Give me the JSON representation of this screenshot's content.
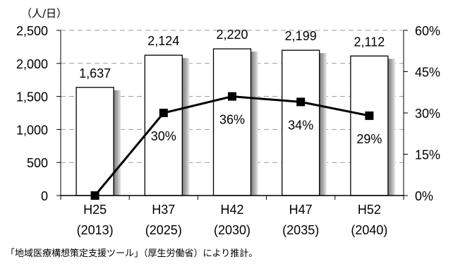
{
  "chart_data": {
    "type": "bar",
    "categories": [
      "H25",
      "H37",
      "H42",
      "H47",
      "H52"
    ],
    "category_years": [
      "(2013)",
      "(2025)",
      "(2030)",
      "(2035)",
      "(2040)"
    ],
    "series": [
      {
        "type": "bar",
        "axis": "left",
        "values": [
          1637,
          2124,
          2220,
          2199,
          2112
        ],
        "data_labels": [
          "1,637",
          "2,124",
          "2,220",
          "2,199",
          "2,112"
        ]
      },
      {
        "type": "line",
        "axis": "right",
        "values": [
          0,
          30,
          36,
          34,
          29
        ],
        "data_labels": [
          null,
          "30%",
          "36%",
          "34%",
          "29%"
        ]
      }
    ],
    "y_left": {
      "unit_label": "（人/日）",
      "min": 0,
      "max": 2500,
      "ticks": [
        0,
        500,
        1000,
        1500,
        2000,
        2500
      ],
      "tick_labels": [
        "0",
        "500",
        "1,000",
        "1,500",
        "2,000",
        "2,500"
      ]
    },
    "y_right": {
      "min": 0,
      "max": 60,
      "ticks": [
        0,
        15,
        30,
        45,
        60
      ],
      "tick_labels": [
        "0%",
        "15%",
        "30%",
        "45%",
        "60%"
      ]
    },
    "grid": true,
    "colors": {
      "bar_fill": "#ffffff",
      "bar_stroke": "#000000",
      "line": "#000000",
      "grid": "#9a9a9a",
      "axis": "#000000"
    }
  },
  "source_note": "「地域医療構想策定支援ツール」（厚生労働省）により推計。"
}
